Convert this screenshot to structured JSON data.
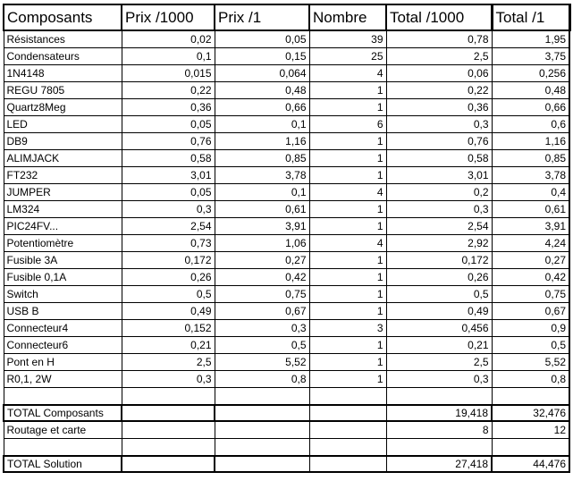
{
  "headers": [
    "Composants",
    "Prix /1000",
    "Prix /1",
    "Nombre",
    "Total /1000",
    "Total /1"
  ],
  "rows": [
    [
      "Résistances",
      "0,02",
      "0,05",
      "39",
      "0,78",
      "1,95"
    ],
    [
      "Condensateurs",
      "0,1",
      "0,15",
      "25",
      "2,5",
      "3,75"
    ],
    [
      "1N4148",
      "0,015",
      "0,064",
      "4",
      "0,06",
      "0,256"
    ],
    [
      "REGU 7805",
      "0,22",
      "0,48",
      "1",
      "0,22",
      "0,48"
    ],
    [
      "Quartz8Meg",
      "0,36",
      "0,66",
      "1",
      "0,36",
      "0,66"
    ],
    [
      "LED",
      "0,05",
      "0,1",
      "6",
      "0,3",
      "0,6"
    ],
    [
      "DB9",
      "0,76",
      "1,16",
      "1",
      "0,76",
      "1,16"
    ],
    [
      "ALIMJACK",
      "0,58",
      "0,85",
      "1",
      "0,58",
      "0,85"
    ],
    [
      "FT232",
      "3,01",
      "3,78",
      "1",
      "3,01",
      "3,78"
    ],
    [
      "JUMPER",
      "0,05",
      "0,1",
      "4",
      "0,2",
      "0,4"
    ],
    [
      "LM324",
      "0,3",
      "0,61",
      "1",
      "0,3",
      "0,61"
    ],
    [
      "PIC24FV...",
      "2,54",
      "3,91",
      "1",
      "2,54",
      "3,91"
    ],
    [
      "Potentiomètre",
      "0,73",
      "1,06",
      "4",
      "2,92",
      "4,24"
    ],
    [
      "Fusible 3A",
      "0,172",
      "0,27",
      "1",
      "0,172",
      "0,27"
    ],
    [
      "Fusible 0,1A",
      "0,26",
      "0,42",
      "1",
      "0,26",
      "0,42"
    ],
    [
      "Switch",
      "0,5",
      "0,75",
      "1",
      "0,5",
      "0,75"
    ],
    [
      "USB B",
      "0,49",
      "0,67",
      "1",
      "0,49",
      "0,67"
    ],
    [
      "Connecteur4",
      "0,152",
      "0,3",
      "3",
      "0,456",
      "0,9"
    ],
    [
      "Connecteur6",
      "0,21",
      "0,5",
      "1",
      "0,21",
      "0,5"
    ],
    [
      "Pont en H",
      "2,5",
      "5,52",
      "1",
      "2,5",
      "5,52"
    ],
    [
      "R0,1, 2W",
      "0,3",
      "0,8",
      "1",
      "0,3",
      "0,8"
    ]
  ],
  "total_composants": {
    "label": "TOTAL Composants",
    "total_1000": "19,418",
    "total_1": "32,476"
  },
  "routage": {
    "label": "Routage et carte",
    "total_1000": "8",
    "total_1": "12"
  },
  "total_solution": {
    "label": "TOTAL Solution",
    "total_1000": "27,418",
    "total_1": "44,476"
  }
}
